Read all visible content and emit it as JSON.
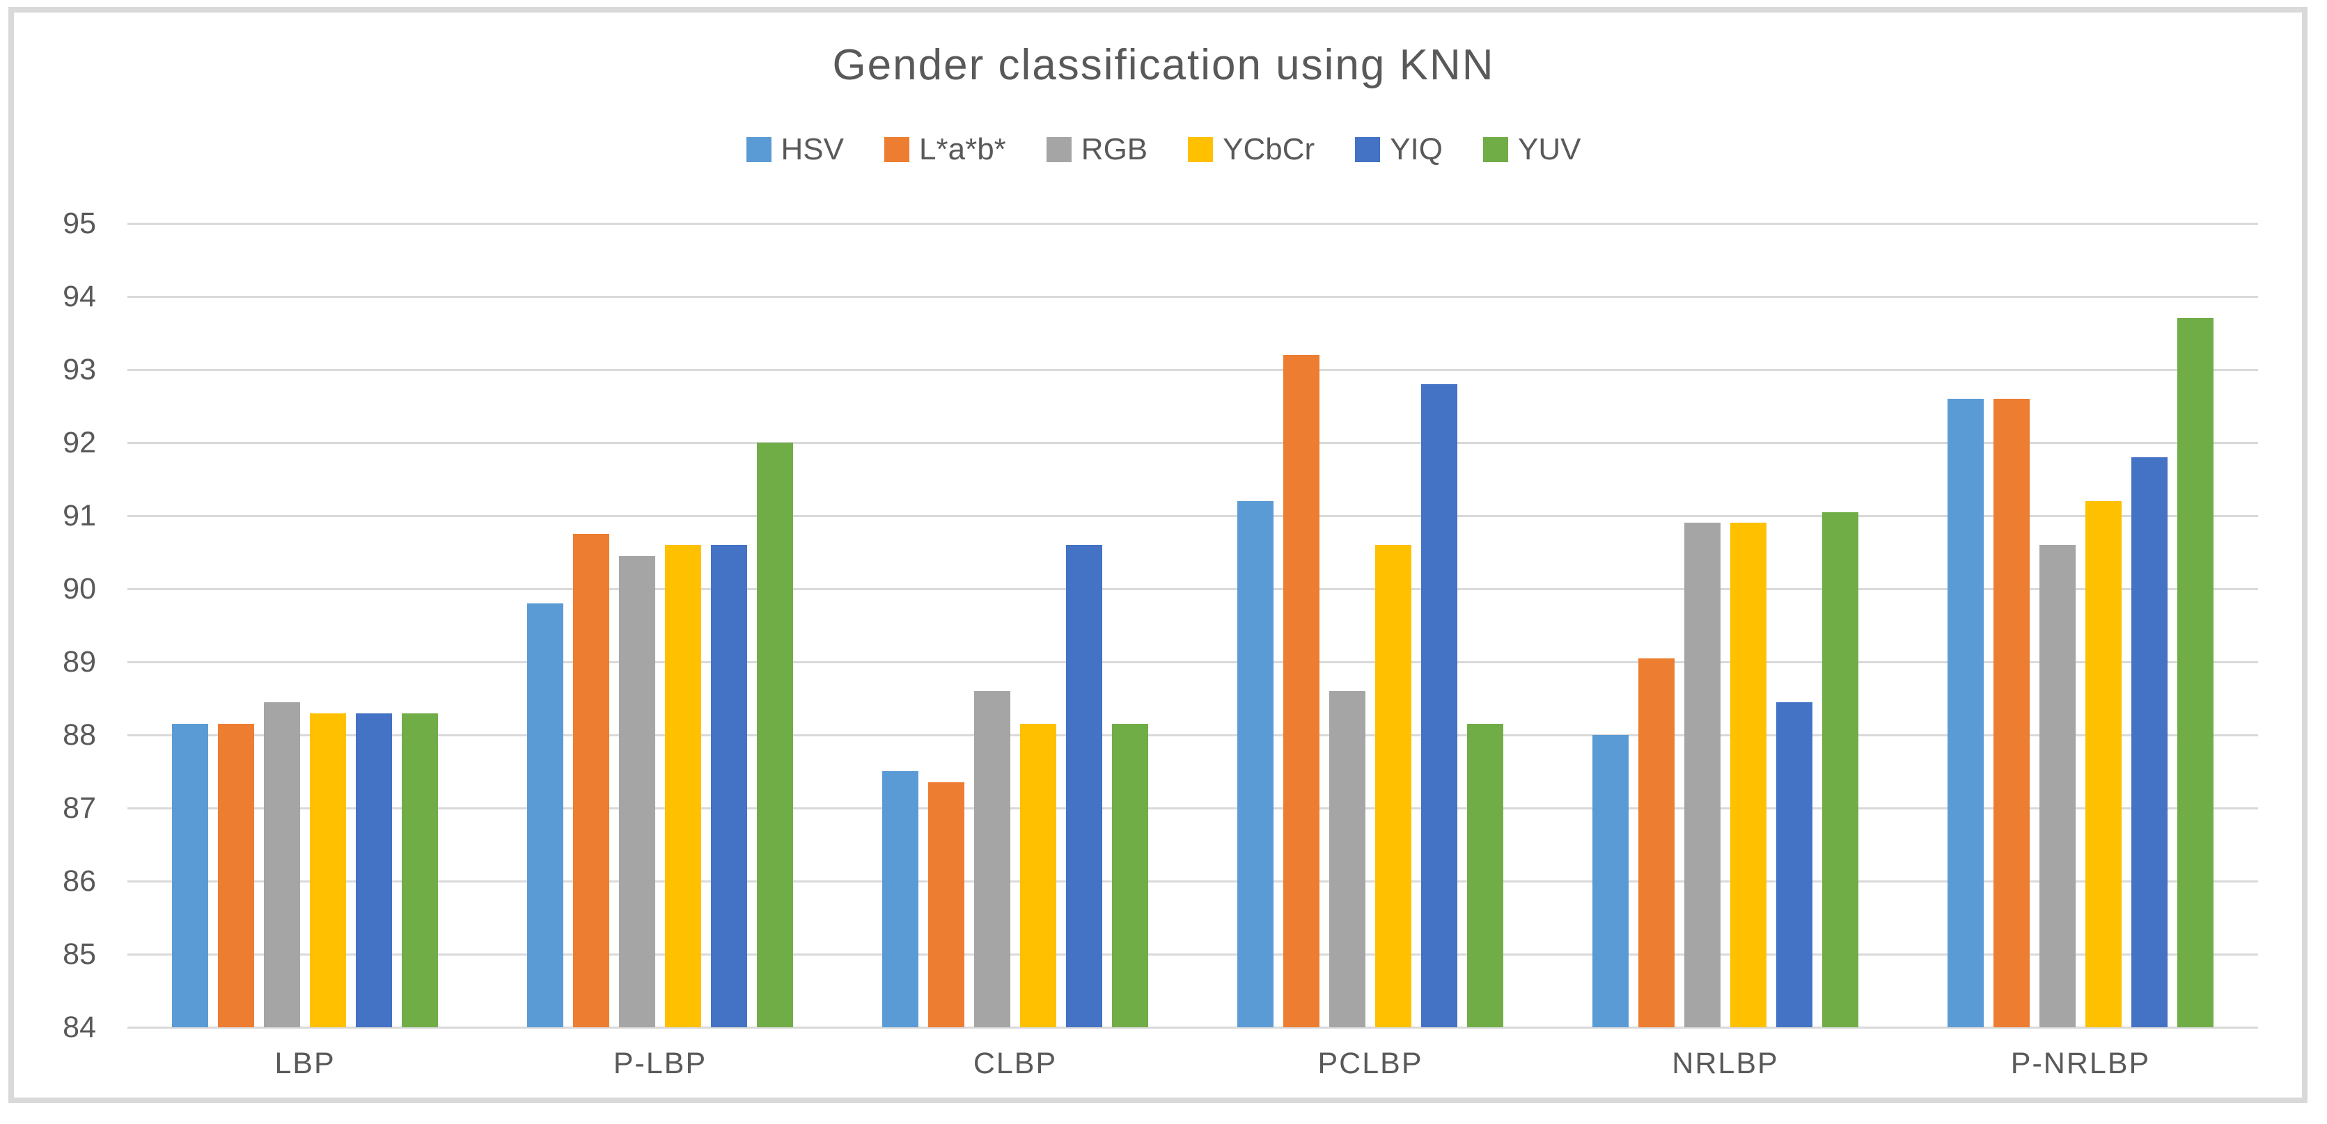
{
  "chart_data": {
    "type": "bar",
    "title": "Gender classification using KNN",
    "categories": [
      "LBP",
      "P-LBP",
      "CLBP",
      "PCLBP",
      "NRLBP",
      "P-NRLBP"
    ],
    "series": [
      {
        "name": "HSV",
        "color": "#5B9BD5",
        "values": [
          88.15,
          89.8,
          87.5,
          91.2,
          88.0,
          92.6
        ]
      },
      {
        "name": "L*a*b*",
        "color": "#ED7D31",
        "values": [
          88.15,
          90.75,
          87.35,
          93.2,
          89.05,
          92.6
        ]
      },
      {
        "name": "RGB",
        "color": "#A5A5A5",
        "values": [
          88.45,
          90.45,
          88.6,
          88.6,
          90.9,
          90.6
        ]
      },
      {
        "name": "YCbCr",
        "color": "#FFC000",
        "values": [
          88.3,
          90.6,
          88.15,
          90.6,
          90.9,
          91.2
        ]
      },
      {
        "name": "YIQ",
        "color": "#4472C4",
        "values": [
          88.3,
          90.6,
          90.6,
          92.8,
          88.45,
          91.8
        ]
      },
      {
        "name": "YUV",
        "color": "#70AD47",
        "values": [
          88.3,
          92.0,
          88.15,
          88.15,
          91.05,
          93.7
        ]
      }
    ],
    "ylim": [
      84,
      95
    ],
    "yticks": [
      84,
      85,
      86,
      87,
      88,
      89,
      90,
      91,
      92,
      93,
      94,
      95
    ],
    "xlabel": "",
    "ylabel": "",
    "legend_position": "top",
    "grid": "horizontal",
    "colors": {
      "text": "#595959",
      "gridline": "#D9D9D9",
      "frame_border": "#D9D9D9",
      "background": "#FFFFFF"
    }
  }
}
